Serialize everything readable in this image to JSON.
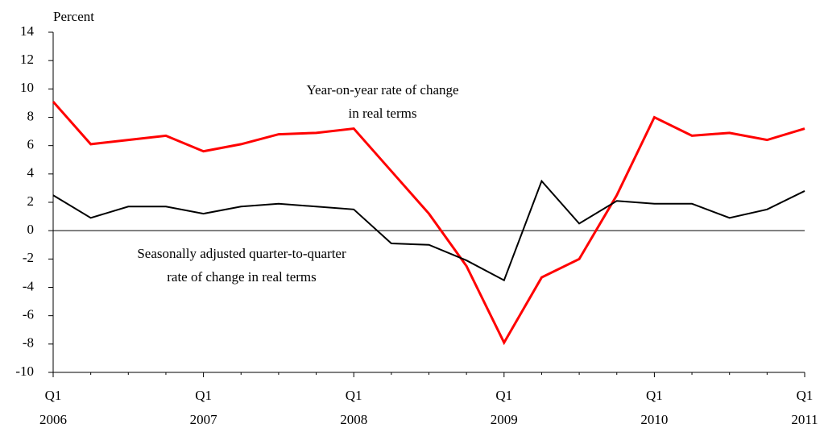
{
  "chart_data": {
    "type": "line",
    "y_axis_label": "Percent",
    "categories": [
      "Q1 2006",
      null,
      null,
      null,
      "Q1 2007",
      null,
      null,
      null,
      "Q1 2008",
      null,
      null,
      null,
      "Q1 2009",
      null,
      null,
      null,
      "Q1 2010",
      null,
      null,
      null,
      "Q1 2011"
    ],
    "series": [
      {
        "name": "Year-on-year rate of change in real terms",
        "color": "#ff0000",
        "values": [
          9.1,
          6.1,
          6.4,
          6.7,
          5.6,
          6.1,
          6.8,
          6.9,
          7.2,
          4.2,
          1.2,
          -2.5,
          -7.9,
          -3.3,
          -2.0,
          2.5,
          8.0,
          6.7,
          6.9,
          6.4,
          7.2
        ]
      },
      {
        "name": "Seasonally adjusted quarter-to-quarter rate of change in real terms",
        "color": "#000000",
        "values": [
          2.5,
          0.9,
          1.7,
          1.7,
          1.2,
          1.7,
          1.9,
          1.7,
          1.5,
          -0.9,
          -1.0,
          -2.1,
          -3.5,
          3.5,
          0.5,
          2.1,
          1.9,
          1.9,
          0.9,
          1.5,
          2.8
        ]
      }
    ],
    "annotations": [
      {
        "lines": [
          "Year-on-year rate of change",
          "in real terms"
        ]
      },
      {
        "lines": [
          "Seasonally adjusted quarter-to-quarter",
          "rate of change in real terms"
        ]
      }
    ],
    "ylim": [
      -10,
      14
    ],
    "yticks": [
      -10,
      -8,
      -6,
      -4,
      -2,
      0,
      2,
      4,
      6,
      8,
      10,
      12,
      14
    ],
    "grid": false
  }
}
